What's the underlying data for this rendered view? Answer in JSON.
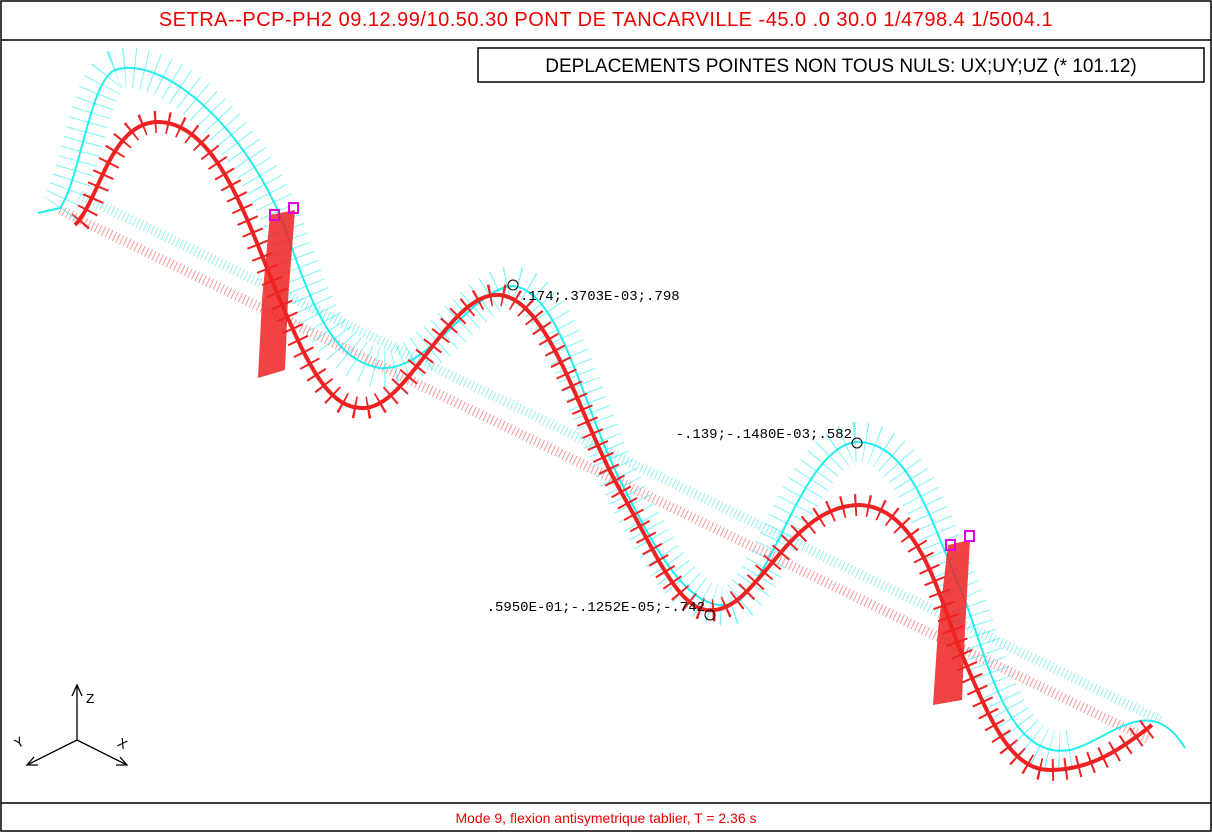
{
  "header": {
    "title": "SETRA--PCP-PH2 09.12.99/10.50.30 PONT DE TANCARVILLE -45.0  .0 30.0 1/4798.4 1/5004.1"
  },
  "legend_box": {
    "text": "DEPLACEMENTS POINTES NON TOUS NULS: UX;UY;UZ (* 101.12)"
  },
  "annotations": [
    ".174;.3703E-03;.798",
    "-.139;-.1480E-03;.582",
    ".5950E-01;-.1252E-05;-.742"
  ],
  "axes": {
    "z": "Z",
    "y": "Y",
    "x": "X"
  },
  "footer": {
    "caption": "Mode 9, flexion antisymetrique tablier, T = 2.36 s"
  }
}
